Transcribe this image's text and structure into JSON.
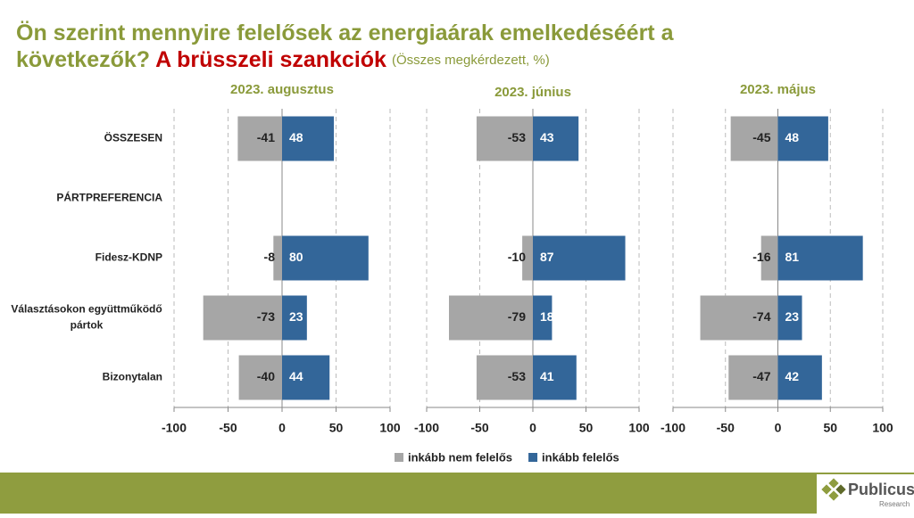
{
  "title": "Ön szerint mennyire felelősek az energiaárak emelkedéséért a következők?",
  "highlight": "A brüsszeli szankciók",
  "subtitle": "(Összes megkérdezett, %)",
  "logo": {
    "name": "Publicus",
    "tagline": "Research"
  },
  "chart_data": [
    {
      "type": "bar",
      "orientation": "horizontal",
      "title": "2023. augusztus",
      "categories": [
        "ÖSSZESEN",
        "PÁRTPREFERENCIA",
        "Fidesz-KDNP",
        "Választásokon együttműködő pártok",
        "Bizonytalan"
      ],
      "series": [
        {
          "name": "inkább nem felelős",
          "color": "#a6a6a6",
          "values": [
            -41,
            null,
            -8,
            -73,
            -40
          ]
        },
        {
          "name": "inkább felelős",
          "color": "#336699",
          "values": [
            48,
            null,
            80,
            23,
            44
          ]
        }
      ],
      "xlim": [
        -100,
        100
      ],
      "xticks": [
        -100,
        -50,
        0,
        50,
        100
      ],
      "grid": true
    },
    {
      "type": "bar",
      "orientation": "horizontal",
      "title": "2023. június",
      "series": [
        {
          "name": "inkább nem felelős",
          "color": "#a6a6a6",
          "values": [
            -53,
            null,
            -10,
            -79,
            -53
          ]
        },
        {
          "name": "inkább felelős",
          "color": "#336699",
          "values": [
            43,
            null,
            87,
            18,
            41
          ]
        }
      ],
      "xlim": [
        -100,
        100
      ],
      "xticks": [
        -100,
        -50,
        0,
        50,
        100
      ],
      "grid": true
    },
    {
      "type": "bar",
      "orientation": "horizontal",
      "title": "2023. május",
      "series": [
        {
          "name": "inkább nem felelős",
          "color": "#a6a6a6",
          "values": [
            -45,
            null,
            -16,
            -74,
            -47
          ]
        },
        {
          "name": "inkább felelős",
          "color": "#336699",
          "values": [
            48,
            null,
            81,
            23,
            42
          ]
        }
      ],
      "xlim": [
        -100,
        100
      ],
      "xticks": [
        -100,
        -50,
        0,
        50,
        100
      ],
      "grid": true
    }
  ]
}
